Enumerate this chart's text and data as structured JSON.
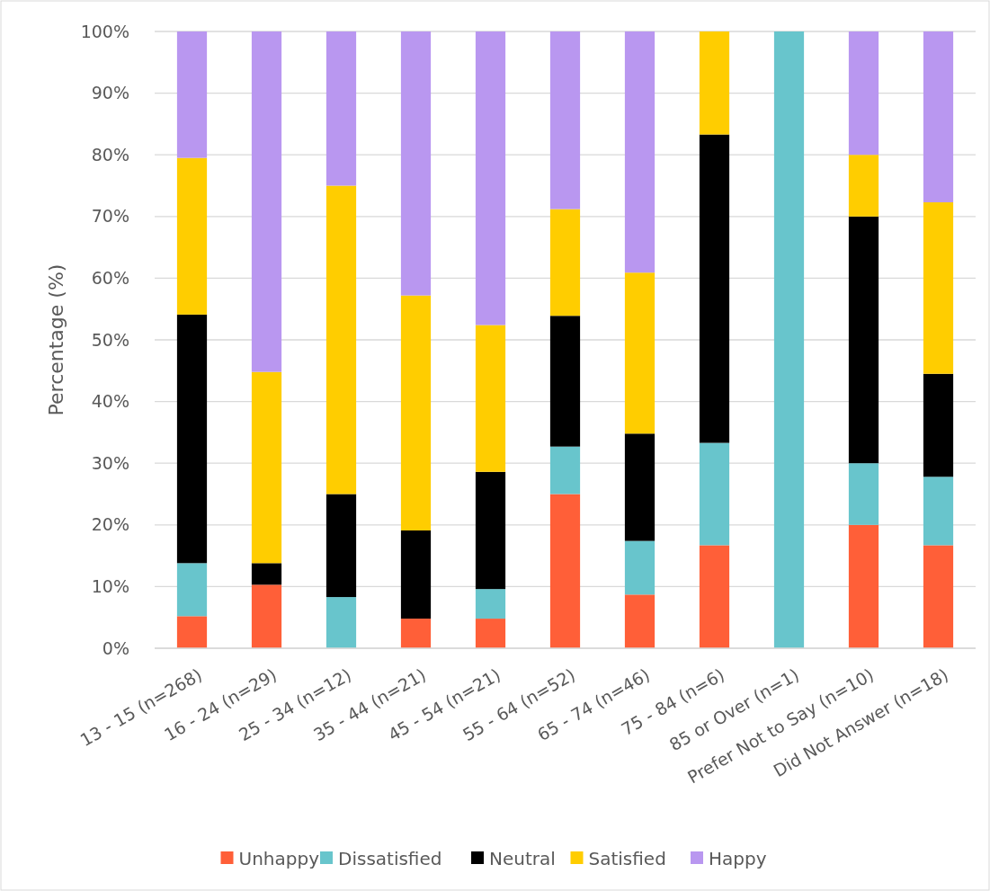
{
  "chart_data": {
    "type": "bar",
    "stacked": true,
    "ylabel": "Percentage (%)",
    "categories": [
      "13 - 15 (n=268)",
      "16 - 24 (n=29)",
      "25 - 34 (n=12)",
      "35 - 44 (n=21)",
      "45 - 54 (n=21)",
      "55 - 64 (n=52)",
      "65 - 74 (n=46)",
      "75 - 84 (n=6)",
      "85 or Over (n=1)",
      "Prefer Not to Say (n=10)",
      "Did Not Answer (n=18)"
    ],
    "series": [
      {
        "name": "Unhappy",
        "color": "#ff5f38",
        "values": [
          5.2,
          10.3,
          0,
          4.8,
          4.8,
          25.0,
          8.7,
          16.7,
          0,
          20,
          16.7
        ]
      },
      {
        "name": "Dissatisfied",
        "color": "#68c5cc",
        "values": [
          8.6,
          0,
          8.3,
          0,
          4.8,
          7.7,
          8.7,
          16.6,
          100,
          10,
          11.1
        ]
      },
      {
        "name": "Neutral",
        "color": "#000000",
        "values": [
          40.3,
          3.5,
          16.7,
          14.3,
          19.0,
          21.2,
          17.4,
          50,
          0,
          40,
          16.7
        ]
      },
      {
        "name": "Satisfied",
        "color": "#ffcd00",
        "values": [
          25.4,
          31.0,
          50,
          38.1,
          23.8,
          17.3,
          26.1,
          16.7,
          0,
          10,
          27.8
        ]
      },
      {
        "name": "Happy",
        "color": "#b997f0",
        "values": [
          20.5,
          55.2,
          25,
          42.8,
          47.6,
          28.8,
          39.1,
          0,
          0,
          20,
          27.7
        ]
      }
    ],
    "ylim": [
      0,
      100
    ],
    "yticks": [
      {
        "value": 0,
        "label": "0%"
      },
      {
        "value": 10,
        "label": "10%"
      },
      {
        "value": 20,
        "label": "20%"
      },
      {
        "value": 30,
        "label": "30%"
      },
      {
        "value": 40,
        "label": "40%"
      },
      {
        "value": 50,
        "label": "50%"
      },
      {
        "value": 60,
        "label": "60%"
      },
      {
        "value": 70,
        "label": "70%"
      },
      {
        "value": 80,
        "label": "80%"
      },
      {
        "value": 90,
        "label": "90%"
      },
      {
        "value": 100,
        "label": "100%"
      }
    ],
    "grid": "y",
    "legend": "bottom"
  }
}
